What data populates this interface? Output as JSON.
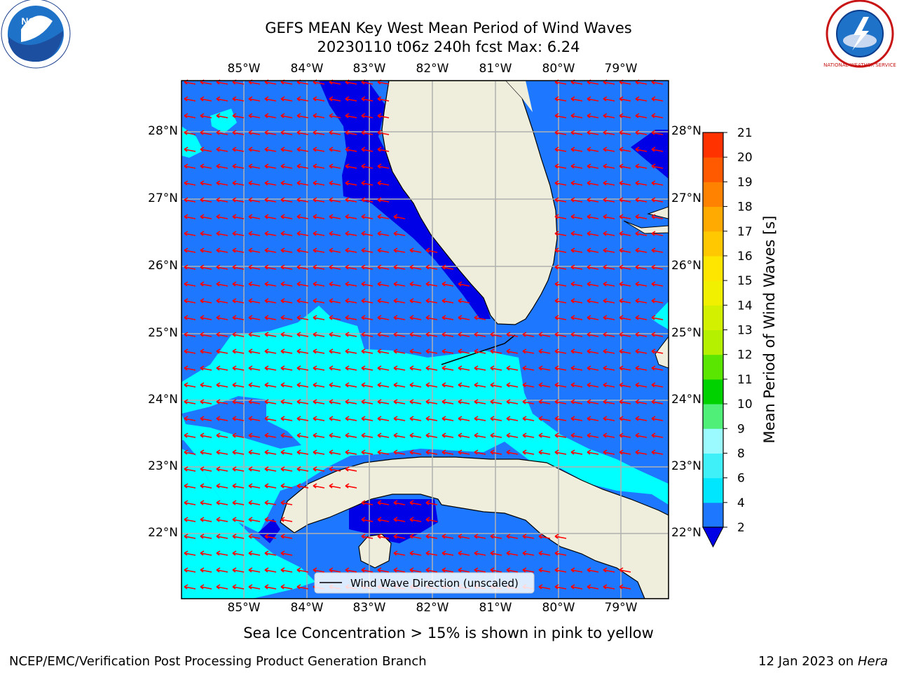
{
  "title": {
    "line1": "GEFS MEAN Key West Mean Period of Wind Waves",
    "line2": "20230110 t06z 240h fcst   Max: 6.24"
  },
  "axes": {
    "lon_labels": [
      "85°W",
      "84°W",
      "83°W",
      "82°W",
      "81°W",
      "80°W",
      "79°W"
    ],
    "lat_labels": [
      "28°N",
      "27°N",
      "26°N",
      "25°N",
      "24°N",
      "23°N",
      "22°N"
    ]
  },
  "legend": {
    "label": "Wind Wave Direction (unscaled)"
  },
  "colorbar": {
    "label": "Mean Period of Wind Waves [s]",
    "ticks": [
      "2",
      "4",
      "6",
      "8",
      "9",
      "10",
      "11",
      "12",
      "13",
      "14",
      "15",
      "16",
      "17",
      "18",
      "19",
      "20",
      "21"
    ],
    "colors": [
      "#1e78ff",
      "#00e6ff",
      "#40f0f8",
      "#9bfaff",
      "#50f078",
      "#00d200",
      "#5ae600",
      "#b4f000",
      "#d2f000",
      "#f0f000",
      "#ffe600",
      "#ffc800",
      "#ffaa00",
      "#ff8200",
      "#ff5a00",
      "#ff3200",
      "#ff0000"
    ],
    "under_color": "#0000e6"
  },
  "map_colors": {
    "land": "#efeedd",
    "sea_dark": "#0000e6",
    "sea_mid": "#1e78ff",
    "sea_light": "#00ffff",
    "arrow": "#ff0000"
  },
  "subtitle": "Sea Ice Concentration > 15% is shown in pink to yellow",
  "footer": {
    "left": "NCEP/EMC/Verification Post Processing Product Generation Branch",
    "date": "12 Jan 2023 on ",
    "host": "Hera"
  },
  "logos": {
    "noaa": "NOAA",
    "nws": "NATIONAL WEATHER SERVICE"
  }
}
